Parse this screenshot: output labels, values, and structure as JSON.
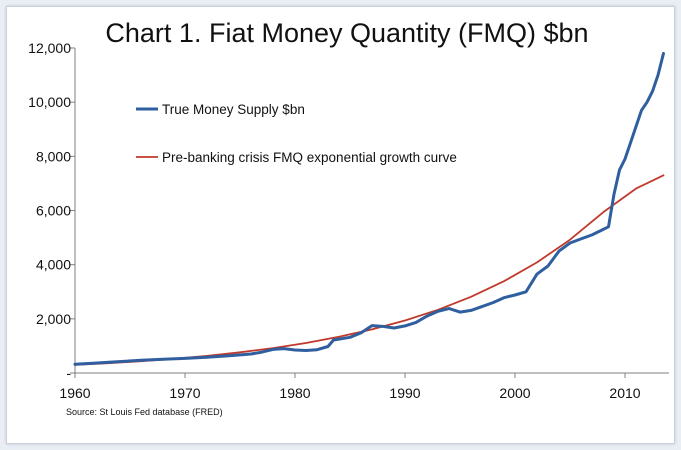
{
  "chart_data": {
    "type": "line",
    "title": "Chart 1. Fiat Money Quantity (FMQ)  $bn",
    "xlabel": "",
    "ylabel": "",
    "xlim": [
      1960,
      2014
    ],
    "ylim": [
      0,
      12000
    ],
    "x_ticks": [
      1960,
      1970,
      1980,
      1990,
      2000,
      2010
    ],
    "x_tick_labels": [
      "1960",
      "1970",
      "1980",
      "1990",
      "2000",
      "2010"
    ],
    "y_ticks": [
      0,
      2000,
      4000,
      6000,
      8000,
      10000,
      12000
    ],
    "y_tick_labels": [
      "-",
      "2,000",
      "4,000",
      "6,000",
      "8,000",
      "10,000",
      "12,000"
    ],
    "grid": false,
    "legend_position": "top-left",
    "series": [
      {
        "name": "True Money Supply $bn",
        "color": "#2f5f9f",
        "x": [
          1960,
          1962,
          1964,
          1966,
          1968,
          1970,
          1972,
          1974,
          1976,
          1977,
          1978,
          1979,
          1980,
          1981,
          1982,
          1983,
          1983.5,
          1984,
          1985,
          1986,
          1987,
          1988,
          1989,
          1990,
          1991,
          1992,
          1993,
          1994,
          1995,
          1996,
          1997,
          1998,
          1999,
          2000,
          2001,
          2002,
          2003,
          2004,
          2005,
          2006,
          2007,
          2008,
          2008.5,
          2009,
          2009.5,
          2010,
          2010.5,
          2011,
          2011.5,
          2012,
          2012.5,
          2013,
          2013.5
        ],
        "values": [
          320,
          370,
          420,
          470,
          510,
          540,
          580,
          640,
          700,
          770,
          870,
          900,
          850,
          830,
          860,
          980,
          1220,
          1250,
          1320,
          1480,
          1750,
          1720,
          1660,
          1740,
          1870,
          2100,
          2280,
          2380,
          2250,
          2310,
          2450,
          2600,
          2780,
          2880,
          3000,
          3650,
          3950,
          4500,
          4800,
          4950,
          5100,
          5300,
          5400,
          6600,
          7500,
          7900,
          8500,
          9100,
          9700,
          10000,
          10400,
          11000,
          11800
        ]
      },
      {
        "name": "Pre-banking crisis FMQ exponential growth curve",
        "color": "#c0392b",
        "x": [
          1960,
          1963,
          1966,
          1969,
          1972,
          1975,
          1978,
          1981,
          1984,
          1987,
          1990,
          1993,
          1996,
          1999,
          2002,
          2005,
          2008,
          2011,
          2013.5
        ],
        "values": [
          300,
          362,
          436,
          525,
          633,
          763,
          919,
          1108,
          1335,
          1608,
          1938,
          2335,
          2813,
          3390,
          4085,
          4922,
          5930,
          6810,
          7300
        ]
      }
    ],
    "source": "Source: St Louis Fed  database (FRED)"
  }
}
